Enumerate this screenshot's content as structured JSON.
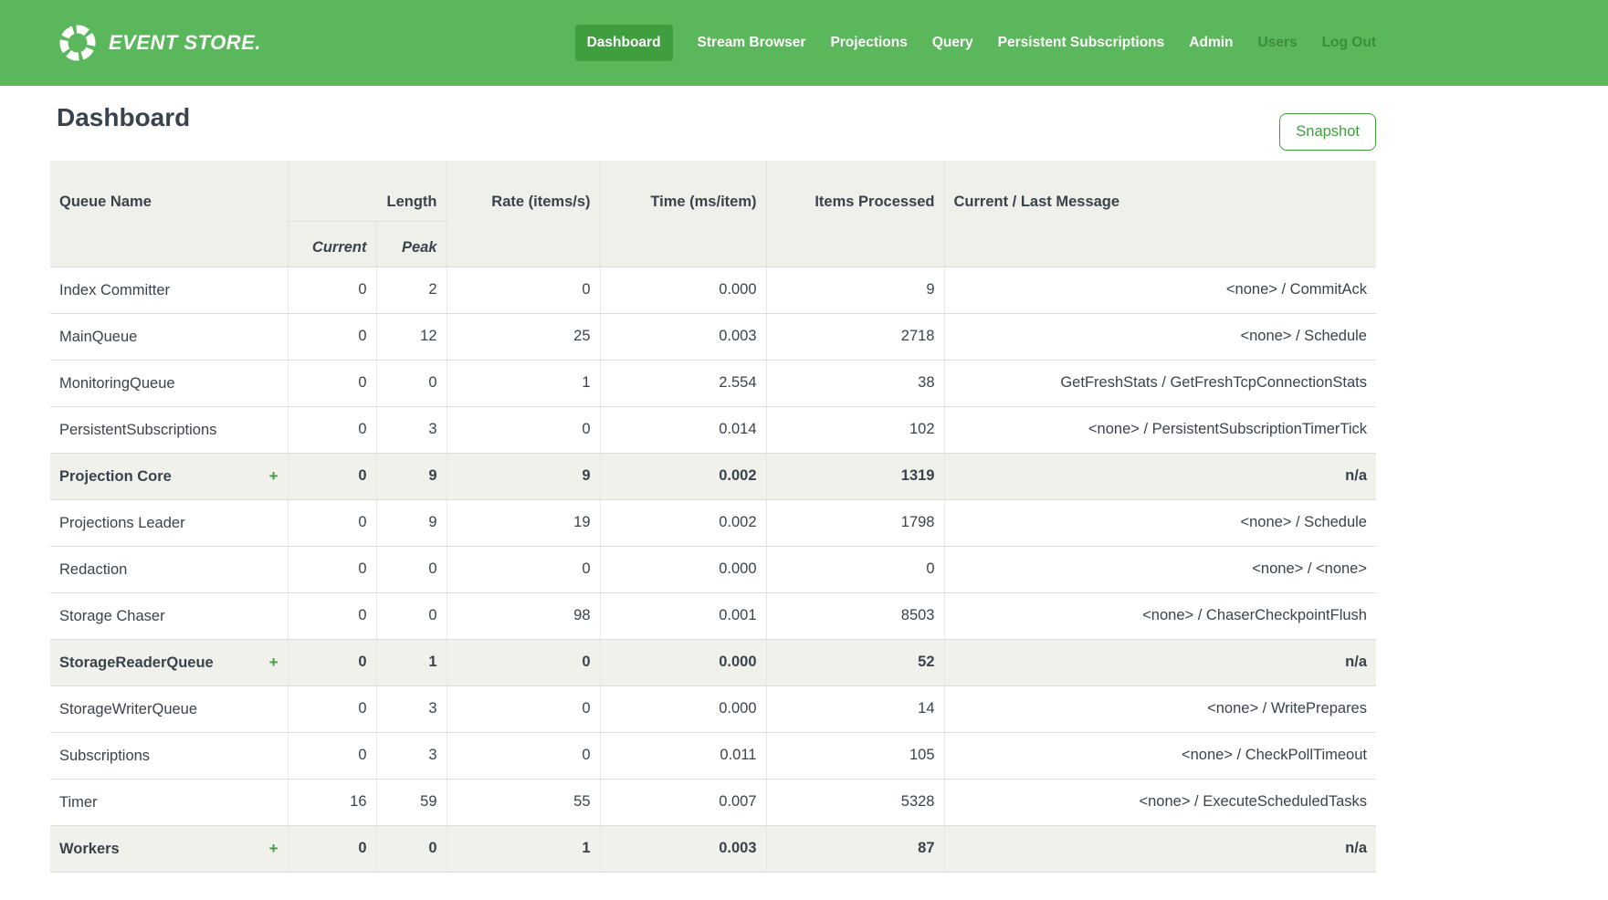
{
  "navbar": {
    "brand": "EVENT STORE.",
    "items": [
      {
        "label": "Dashboard",
        "state": "active"
      },
      {
        "label": "Stream Browser",
        "state": "normal"
      },
      {
        "label": "Projections",
        "state": "normal"
      },
      {
        "label": "Query",
        "state": "normal"
      },
      {
        "label": "Persistent Subscriptions",
        "state": "normal"
      },
      {
        "label": "Admin",
        "state": "normal"
      },
      {
        "label": "Users",
        "state": "muted"
      },
      {
        "label": "Log Out",
        "state": "muted"
      }
    ]
  },
  "page": {
    "title": "Dashboard",
    "snapshot_button_label": "Snapshot"
  },
  "table": {
    "columns": {
      "queue_name": "Queue Name",
      "length": "Length",
      "length_sub": [
        "Current",
        "Peak"
      ],
      "rate": "Rate (items/s)",
      "time": "Time (ms/item)",
      "items_processed": "Items Processed",
      "message": "Current / Last Message"
    },
    "expand_icon": "+",
    "rows": [
      {
        "name": "Index Committer",
        "group": false,
        "current": "0",
        "peak": "2",
        "rate": "0",
        "time": "0.000",
        "items": "9",
        "message": "<none> / CommitAck"
      },
      {
        "name": "MainQueue",
        "group": false,
        "current": "0",
        "peak": "12",
        "rate": "25",
        "time": "0.003",
        "items": "2718",
        "message": "<none> / Schedule"
      },
      {
        "name": "MonitoringQueue",
        "group": false,
        "current": "0",
        "peak": "0",
        "rate": "1",
        "time": "2.554",
        "items": "38",
        "message": "GetFreshStats / GetFreshTcpConnectionStats"
      },
      {
        "name": "PersistentSubscriptions",
        "group": false,
        "current": "0",
        "peak": "3",
        "rate": "0",
        "time": "0.014",
        "items": "102",
        "message": "<none> / PersistentSubscriptionTimerTick"
      },
      {
        "name": "Projection Core",
        "group": true,
        "current": "0",
        "peak": "9",
        "rate": "9",
        "time": "0.002",
        "items": "1319",
        "message": "n/a"
      },
      {
        "name": "Projections Leader",
        "group": false,
        "current": "0",
        "peak": "9",
        "rate": "19",
        "time": "0.002",
        "items": "1798",
        "message": "<none> / Schedule"
      },
      {
        "name": "Redaction",
        "group": false,
        "current": "0",
        "peak": "0",
        "rate": "0",
        "time": "0.000",
        "items": "0",
        "message": "<none> / <none>"
      },
      {
        "name": "Storage Chaser",
        "group": false,
        "current": "0",
        "peak": "0",
        "rate": "98",
        "time": "0.001",
        "items": "8503",
        "message": "<none> / ChaserCheckpointFlush"
      },
      {
        "name": "StorageReaderQueue",
        "group": true,
        "current": "0",
        "peak": "1",
        "rate": "0",
        "time": "0.000",
        "items": "52",
        "message": "n/a"
      },
      {
        "name": "StorageWriterQueue",
        "group": false,
        "current": "0",
        "peak": "3",
        "rate": "0",
        "time": "0.000",
        "items": "14",
        "message": "<none> / WritePrepares"
      },
      {
        "name": "Subscriptions",
        "group": false,
        "current": "0",
        "peak": "3",
        "rate": "0",
        "time": "0.011",
        "items": "105",
        "message": "<none> / CheckPollTimeout"
      },
      {
        "name": "Timer",
        "group": false,
        "current": "16",
        "peak": "59",
        "rate": "55",
        "time": "0.007",
        "items": "5328",
        "message": "<none> / ExecuteScheduledTasks"
      },
      {
        "name": "Workers",
        "group": true,
        "current": "0",
        "peak": "0",
        "rate": "1",
        "time": "0.003",
        "items": "87",
        "message": "n/a"
      }
    ]
  },
  "colors": {
    "navbar_green": "#5bb75b",
    "active_pill_green": "#3f9f3f",
    "muted_nav_green": "#3c8c3c",
    "accent_green": "#3f9f3f",
    "text_dark": "#39434e",
    "header_bg": "#f0f0eb",
    "group_row_bg": "#f0f1ea",
    "row_border": "#dddddd"
  }
}
